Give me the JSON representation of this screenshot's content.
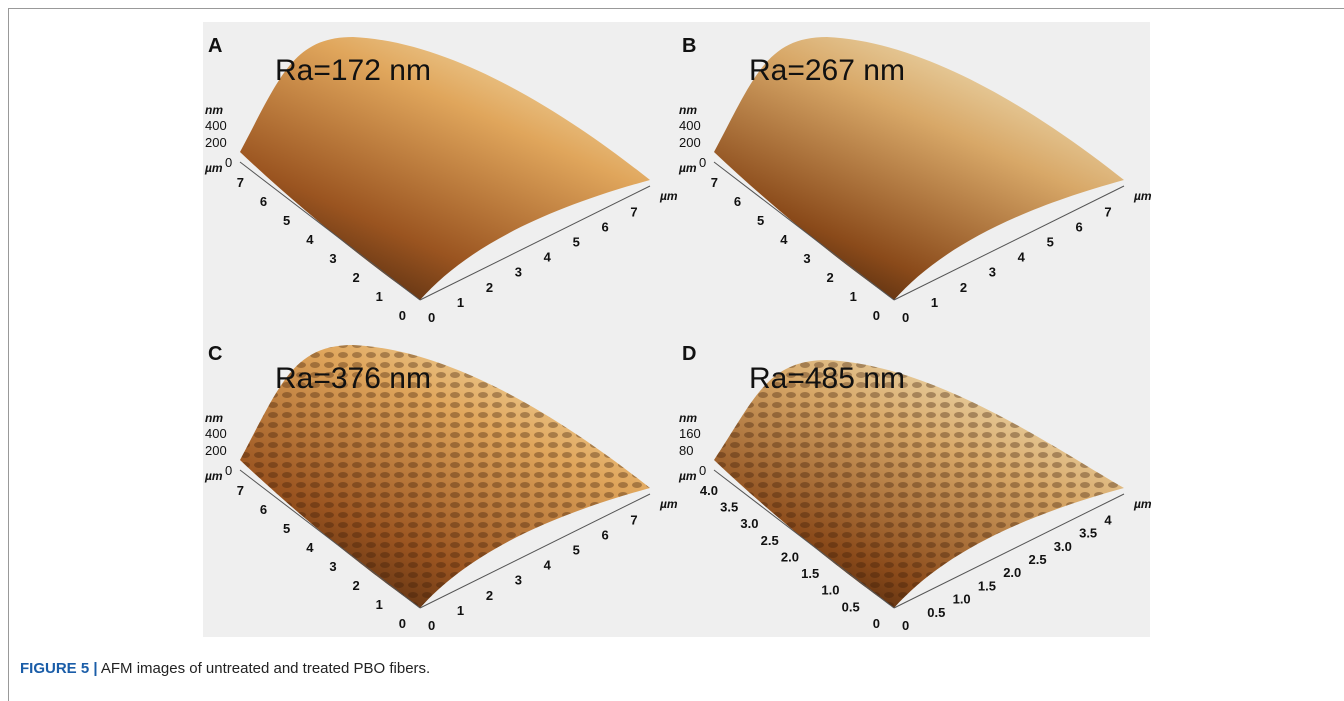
{
  "figure": {
    "panels": [
      {
        "letter": "A",
        "ra": "Ra=172 nm",
        "z_unit": "nm",
        "z_ticks": [
          "400",
          "200"
        ],
        "base_unit": "µm",
        "z_zero": "0",
        "left_ticks": [
          "7",
          "6",
          "5",
          "4",
          "3",
          "2",
          "1",
          "0"
        ],
        "right_ticks": [
          "0",
          "1",
          "2",
          "3",
          "4",
          "5",
          "6",
          "7"
        ],
        "right_unit": "µm"
      },
      {
        "letter": "B",
        "ra": "Ra=267 nm",
        "z_unit": "nm",
        "z_ticks": [
          "400",
          "200"
        ],
        "base_unit": "µm",
        "z_zero": "0",
        "left_ticks": [
          "7",
          "6",
          "5",
          "4",
          "3",
          "2",
          "1",
          "0"
        ],
        "right_ticks": [
          "0",
          "1",
          "2",
          "3",
          "4",
          "5",
          "6",
          "7"
        ],
        "right_unit": "µm"
      },
      {
        "letter": "C",
        "ra": "Ra=376 nm",
        "z_unit": "nm",
        "z_ticks": [
          "400",
          "200"
        ],
        "base_unit": "µm",
        "z_zero": "0",
        "left_ticks": [
          "7",
          "6",
          "5",
          "4",
          "3",
          "2",
          "1",
          "0"
        ],
        "right_ticks": [
          "0",
          "1",
          "2",
          "3",
          "4",
          "5",
          "6",
          "7"
        ],
        "right_unit": "µm"
      },
      {
        "letter": "D",
        "ra": "Ra=485 nm",
        "z_unit": "nm",
        "z_ticks": [
          "160",
          "80"
        ],
        "base_unit": "µm",
        "z_zero": "0",
        "left_ticks": [
          "4.0",
          "3.5",
          "3.0",
          "2.5",
          "2.0",
          "1.5",
          "1.0",
          "0.5",
          "0"
        ],
        "right_ticks": [
          "0",
          "0.5",
          "1.0",
          "1.5",
          "2.0",
          "2.5",
          "3.0",
          "3.5",
          "4"
        ],
        "right_unit": "µm"
      }
    ],
    "caption": {
      "label": "FIGURE 5 |",
      "text": "AFM images of untreated and treated PBO fibers."
    }
  }
}
